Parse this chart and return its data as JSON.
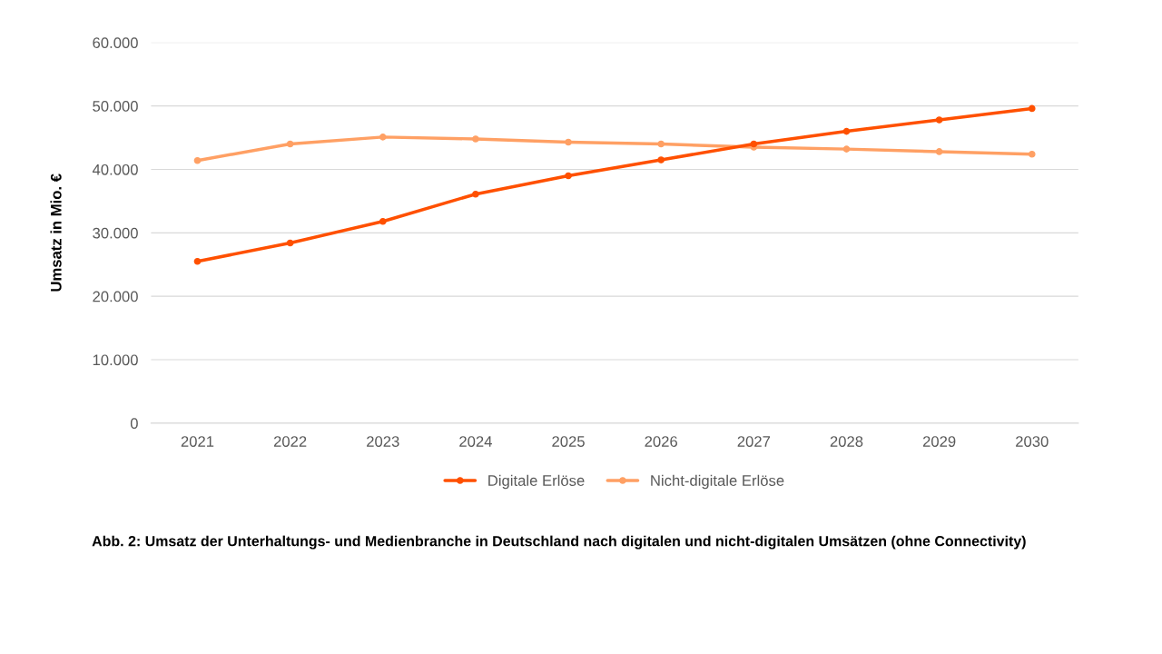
{
  "chart_data": {
    "type": "line",
    "ylabel": "Umsatz in Mio. €",
    "categories": [
      "2021",
      "2022",
      "2023",
      "2024",
      "2025",
      "2026",
      "2027",
      "2028",
      "2029",
      "2030"
    ],
    "series": [
      {
        "name": "Digitale Erlöse",
        "color": "#ff5000",
        "values": [
          25500,
          28400,
          31800,
          36100,
          39000,
          41500,
          44000,
          46000,
          47800,
          49600
        ]
      },
      {
        "name": "Nicht-digitale Erlöse",
        "color": "#ffa064",
        "values": [
          41400,
          44000,
          45100,
          44800,
          44300,
          44000,
          43500,
          43200,
          42800,
          42400
        ]
      }
    ],
    "ylim": [
      0,
      60000
    ],
    "yticks": [
      0,
      {
        "value": 10000,
        "label": "10.000"
      },
      {
        "value": 20000,
        "label": "20.000"
      },
      {
        "value": 30000,
        "label": "30.000"
      },
      {
        "value": 40000,
        "label": "40.000"
      },
      {
        "value": 50000,
        "label": "50.000"
      },
      {
        "value": 60000,
        "label": "60.000"
      }
    ],
    "grid": "y",
    "legend": "bottom",
    "marker": "circle",
    "line_style": "solid",
    "annotations": [
      "Abb. 2: Umsatz der Unterhaltungs- und Medienbranche in Deutschland nach digitalen und nicht-digitalen Umsätzen (ohne Connectivity)"
    ]
  }
}
